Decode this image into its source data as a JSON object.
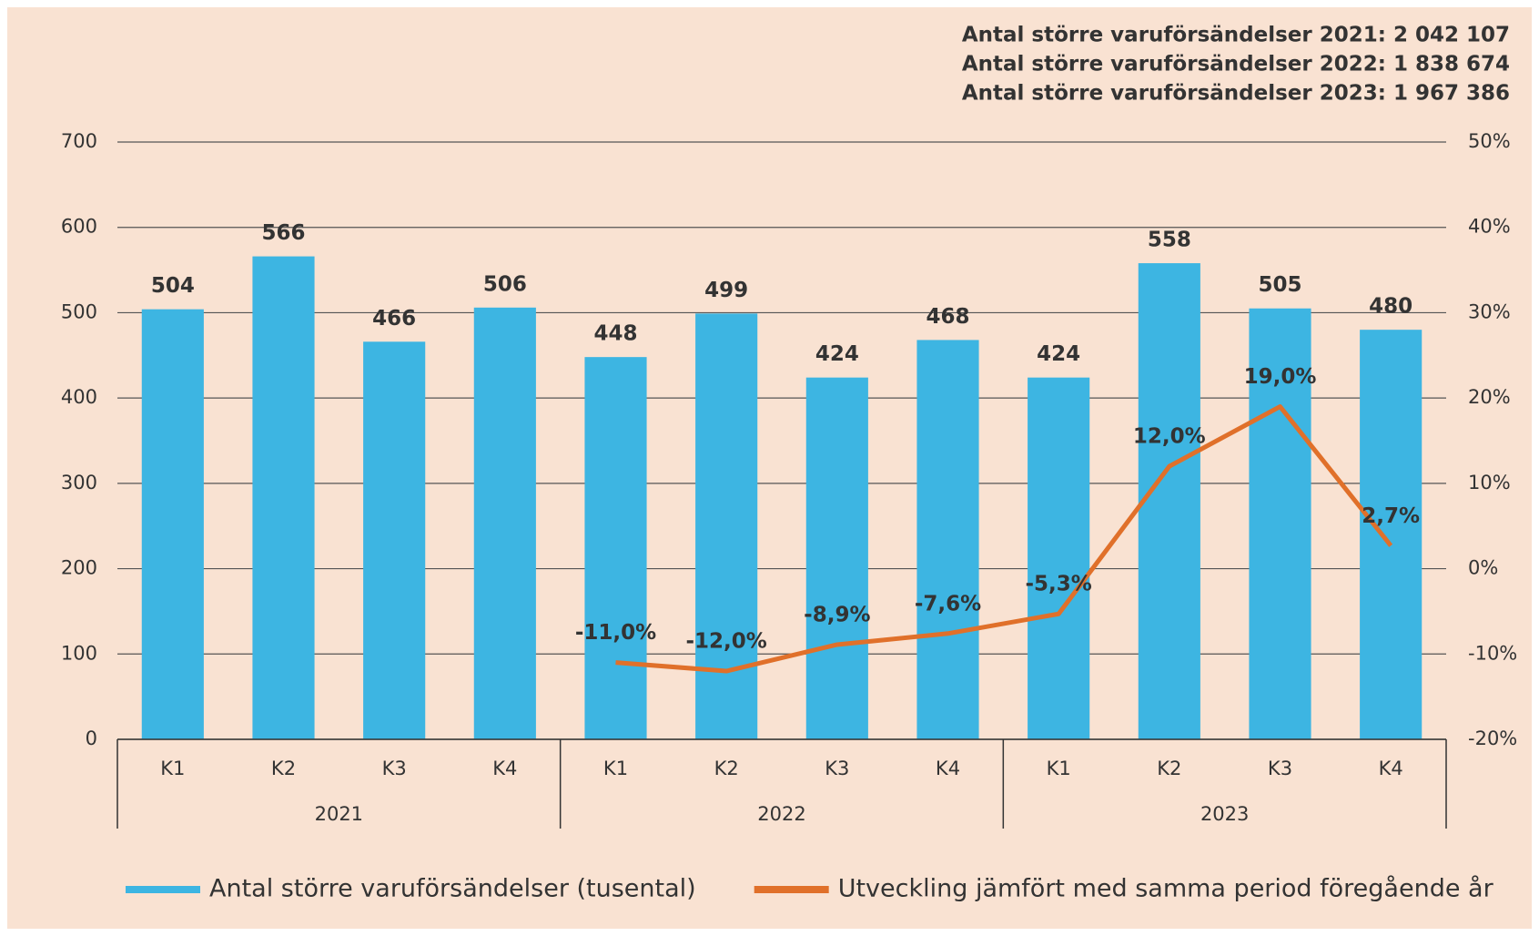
{
  "chart_data": {
    "type": "bar",
    "annotations": [
      "Antal större varuförsändelser 2021: 2 042 107",
      "Antal större varuförsändelser 2022: 1 838 674",
      "Antal större varuförsändelser 2023: 1 967 386"
    ],
    "categories": [
      "K1",
      "K2",
      "K3",
      "K4",
      "K1",
      "K2",
      "K3",
      "K4",
      "K1",
      "K2",
      "K3",
      "K4"
    ],
    "groups": [
      "2021",
      "2022",
      "2023"
    ],
    "series": [
      {
        "name": "Antal större varuförsändelser (tusental)",
        "color": "#3db5e2",
        "type": "bar",
        "values": [
          504,
          566,
          466,
          506,
          448,
          499,
          424,
          468,
          424,
          558,
          505,
          480
        ]
      },
      {
        "name": "Utveckling jämfört med samma period föregående år",
        "color": "#e0702a",
        "type": "line",
        "axis": "y2",
        "values": [
          null,
          null,
          null,
          null,
          -11.0,
          -12.0,
          -8.9,
          -7.6,
          -5.3,
          12.0,
          19.0,
          2.7
        ],
        "value_labels": [
          null,
          null,
          null,
          null,
          "-11,0%",
          "-12,0%",
          "-8,9%",
          "-7,6%",
          "-5,3%",
          "12,0%",
          "19,0%",
          "2,7%"
        ]
      }
    ],
    "ylim": [
      0,
      700
    ],
    "yticks": [
      0,
      100,
      200,
      300,
      400,
      500,
      600,
      700
    ],
    "y2lim": [
      -20,
      50
    ],
    "y2ticks": [
      {
        "value": -20,
        "label": "-20%"
      },
      {
        "value": -10,
        "label": "-10%"
      },
      {
        "value": 0,
        "label": "0%"
      },
      {
        "value": 10,
        "label": "10%"
      },
      {
        "value": 20,
        "label": "20%"
      },
      {
        "value": 30,
        "label": "30%"
      },
      {
        "value": 40,
        "label": "40%"
      },
      {
        "value": 50,
        "label": "50%"
      }
    ],
    "grid": true
  }
}
